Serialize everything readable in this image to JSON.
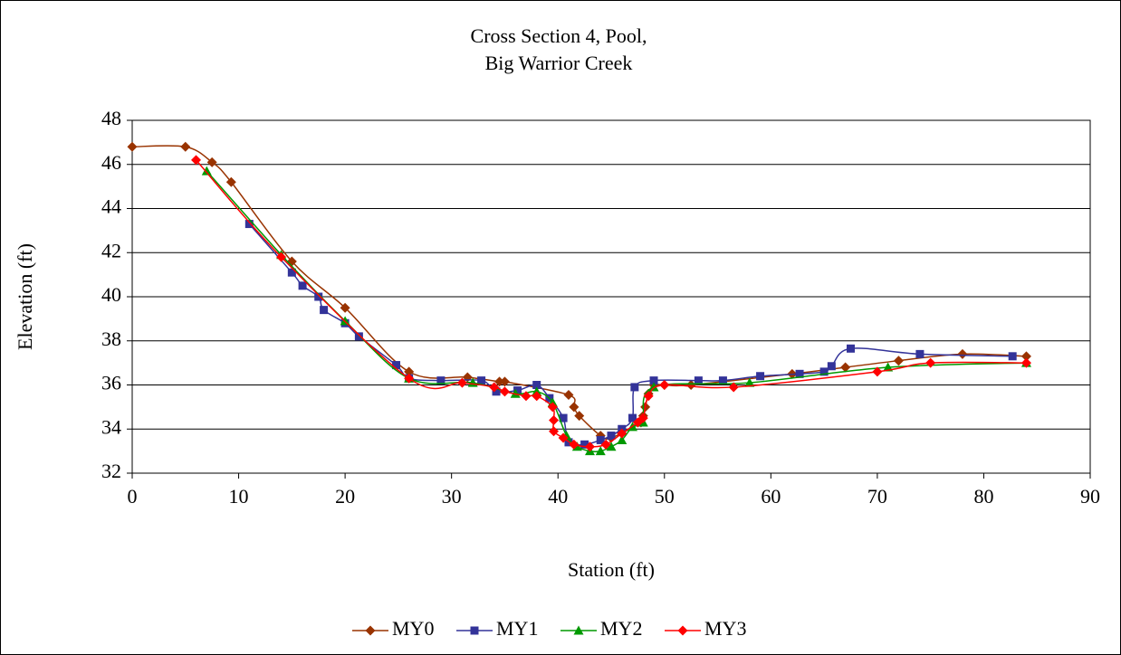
{
  "chart_data": {
    "type": "scatter",
    "title": [
      "Cross Section 4, Pool,",
      "Big Warrior Creek"
    ],
    "x_label": "Station (ft)",
    "y_label": "Elevation (ft)",
    "xlim": [
      0,
      90
    ],
    "xticks": [
      0,
      10,
      20,
      30,
      40,
      50,
      60,
      70,
      80,
      90
    ],
    "ylim": [
      32,
      48
    ],
    "yticks": [
      32,
      34,
      36,
      38,
      40,
      42,
      44,
      46,
      48
    ],
    "grid": true,
    "legend": "bottom",
    "series": [
      {
        "name": "MY0",
        "color": "#993300",
        "marker": "diamond",
        "x": [
          0,
          5,
          7.5,
          9.3,
          15,
          20,
          26,
          31.5,
          34.5,
          35,
          41,
          41.5,
          42,
          44,
          45,
          47.8,
          48,
          48.2,
          48.5,
          49,
          50,
          52.5,
          62,
          67,
          72,
          78,
          84
        ],
        "values": [
          46.8,
          46.8,
          46.1,
          45.2,
          41.6,
          39.5,
          36.6,
          36.35,
          36.15,
          36.15,
          35.55,
          35,
          34.6,
          33.7,
          33.6,
          34.3,
          34.6,
          35,
          35.6,
          36,
          36,
          36,
          36.5,
          36.8,
          37.1,
          37.4,
          37.3
        ]
      },
      {
        "name": "MY1",
        "color": "#333399",
        "marker": "square",
        "x": [
          11,
          15,
          16,
          17.5,
          18,
          20,
          21.3,
          24.8,
          26,
          29,
          32.8,
          34.2,
          36.2,
          38,
          39.2,
          40.5,
          41,
          42.5,
          44,
          45,
          46,
          47,
          47.2,
          49,
          53.2,
          55.5,
          59,
          62.7,
          65,
          65.7,
          67.5,
          74,
          82.7
        ],
        "values": [
          43.3,
          41.1,
          40.5,
          40,
          39.4,
          38.8,
          38.2,
          36.9,
          36.3,
          36.2,
          36.2,
          35.7,
          35.75,
          36,
          35.4,
          34.5,
          33.4,
          33.3,
          33.5,
          33.7,
          34,
          34.5,
          35.9,
          36.2,
          36.2,
          36.2,
          36.4,
          36.5,
          36.6,
          36.85,
          37.65,
          37.4,
          37.3
        ]
      },
      {
        "name": "MY2",
        "color": "#009900",
        "marker": "triangle",
        "x": [
          7,
          14,
          20,
          26,
          32,
          36,
          38,
          39.5,
          40.8,
          41.8,
          43,
          44,
          45,
          46,
          47,
          48,
          49,
          58,
          71,
          84
        ],
        "values": [
          45.7,
          41.9,
          38.9,
          36.3,
          36.1,
          35.6,
          35.7,
          35.2,
          33.7,
          33.2,
          33,
          33,
          33.2,
          33.5,
          34.1,
          34.3,
          35.9,
          36.1,
          36.8,
          37
        ]
      },
      {
        "name": "MY3",
        "color": "#ff0000",
        "marker": "diamond",
        "x": [
          6,
          14,
          26,
          31,
          34,
          35,
          37,
          38,
          39.5,
          39.6,
          39.6,
          40.5,
          41.5,
          43,
          44.5,
          46,
          47.5,
          48,
          48.5,
          50,
          56.5,
          70,
          75,
          84
        ],
        "values": [
          46.2,
          41.8,
          36.3,
          36.1,
          35.9,
          35.7,
          35.5,
          35.5,
          35,
          34.4,
          33.9,
          33.6,
          33.3,
          33.2,
          33.3,
          33.8,
          34.3,
          34.5,
          35.5,
          36,
          35.9,
          36.6,
          37,
          37
        ]
      }
    ]
  }
}
